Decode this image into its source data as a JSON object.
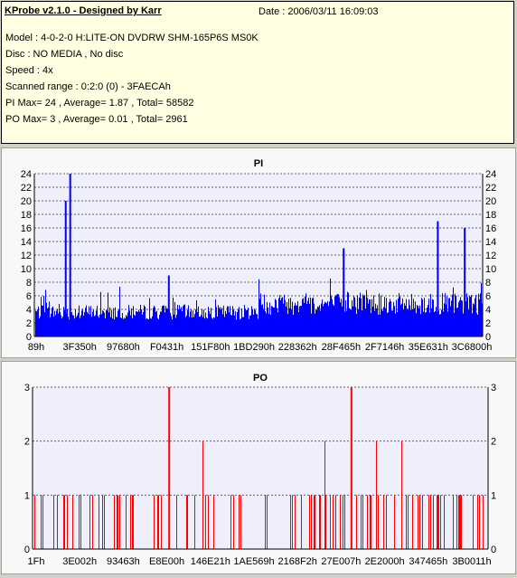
{
  "info": {
    "title": "KProbe v2.1.0 - Designed by Karr",
    "date": "Date : 2006/03/11 16:09:03",
    "lines": [
      "Model : 4-0-2-0 H:LITE-ON DVDRW SHM-165P6S MS0K",
      "Disc : NO MEDIA , No disc",
      "Speed : 4x",
      "Scanned range : 0:2:0 (0) - 3FAECAh",
      "PI Max= 24 , Average= 1.87 , Total= 58582",
      "PO Max= 3 , Average= 0.01 , Total= 2961"
    ]
  },
  "chart_data": [
    {
      "type": "bar",
      "title": "PI",
      "color": "#0000ff",
      "ylim": [
        0,
        24
      ],
      "yticks": [
        0,
        2,
        4,
        6,
        8,
        10,
        12,
        14,
        16,
        18,
        20,
        22,
        24
      ],
      "xlabels": [
        "89h",
        "3F350h",
        "97680h",
        "F0431h",
        "151F80h",
        "1BD290h",
        "228362h",
        "28F465h",
        "2F7146h",
        "35E631h",
        "3C6800h"
      ],
      "grid": true,
      "peaks": [
        {
          "pos": 0.08,
          "value": 24
        },
        {
          "pos": 0.07,
          "value": 20
        },
        {
          "pos": 0.3,
          "value": 9
        },
        {
          "pos": 0.69,
          "value": 13
        },
        {
          "pos": 0.9,
          "value": 17
        },
        {
          "pos": 0.96,
          "value": 16
        }
      ]
    },
    {
      "type": "bar",
      "title": "PO",
      "color": "#ff0000",
      "ylim": [
        0,
        3
      ],
      "yticks": [
        0,
        1,
        2,
        3
      ],
      "xlabels": [
        "1Fh",
        "3E002h",
        "93463h",
        "E8E00h",
        "146E21h",
        "1AE569h",
        "2168F2h",
        "27E007h",
        "2E2000h",
        "347465h",
        "3B0011h"
      ],
      "grid": true,
      "peaks": [
        {
          "pos": 0.3,
          "value": 3
        },
        {
          "pos": 0.7,
          "value": 3
        }
      ]
    }
  ]
}
